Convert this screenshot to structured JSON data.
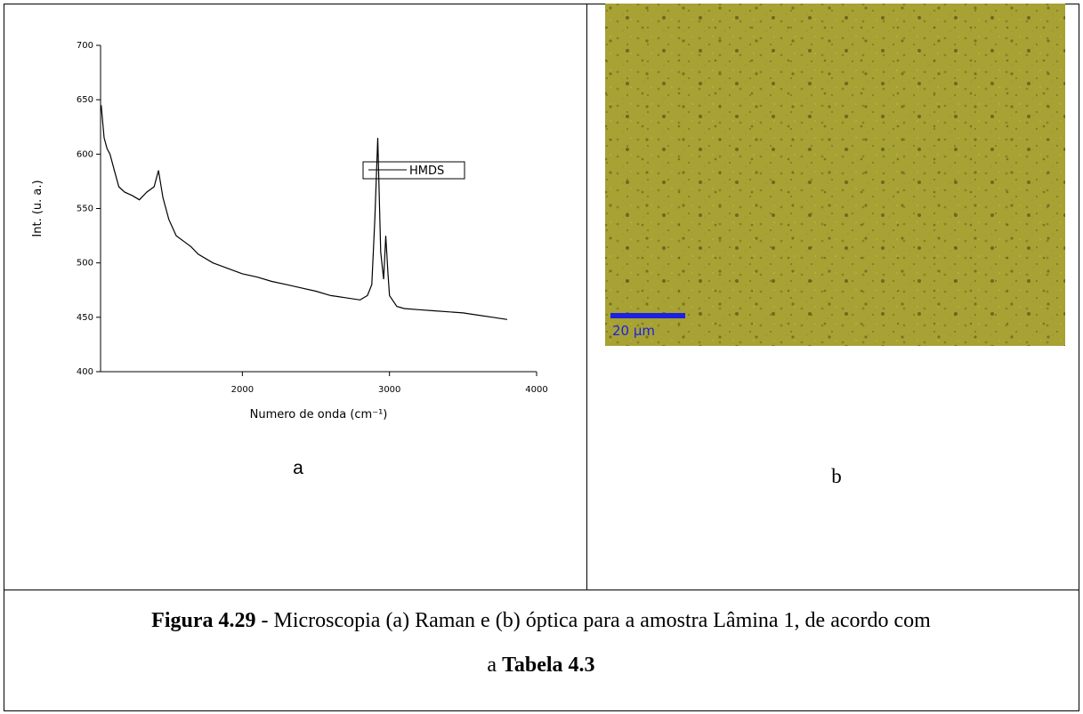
{
  "chart_data": {
    "type": "line",
    "xlabel": "Numero de onda (cm⁻¹)",
    "ylabel": "Int. (u. a.)",
    "xlim": [
      1036,
      4000
    ],
    "ylim": [
      400,
      700
    ],
    "xticks": [
      2000,
      3000,
      4000
    ],
    "yticks": [
      400,
      450,
      500,
      550,
      600,
      650,
      700
    ],
    "legend": "top-right",
    "x": [
      1040,
      1060,
      1080,
      1100,
      1130,
      1160,
      1200,
      1250,
      1300,
      1350,
      1400,
      1430,
      1460,
      1500,
      1550,
      1600,
      1650,
      1700,
      1800,
      1900,
      2000,
      2100,
      2200,
      2300,
      2400,
      2500,
      2600,
      2700,
      2800,
      2850,
      2880,
      2900,
      2920,
      2940,
      2960,
      2975,
      2990,
      3000,
      3050,
      3100,
      3200,
      3300,
      3400,
      3500,
      3600,
      3700,
      3800
    ],
    "series": [
      {
        "name": "HMDS",
        "color": "#000000",
        "values": [
          645,
          615,
          605,
          600,
          585,
          570,
          565,
          562,
          558,
          565,
          570,
          585,
          560,
          540,
          525,
          520,
          515,
          508,
          500,
          495,
          490,
          487,
          483,
          480,
          477,
          474,
          470,
          468,
          466,
          470,
          480,
          540,
          615,
          510,
          485,
          525,
          490,
          470,
          460,
          458,
          457,
          456,
          455,
          454,
          452,
          450,
          448
        ]
      }
    ]
  },
  "panels": {
    "a": {
      "label": "a"
    },
    "b": {
      "label": "b",
      "scale_bar": "20 µm"
    }
  },
  "caption": {
    "figure": "Figura 4.29",
    "text": " - Microscopia (a) Raman e (b) óptica para a amostra Lâmina 1, de acordo com",
    "line2": "a ",
    "table": "Tabela 4.3"
  }
}
